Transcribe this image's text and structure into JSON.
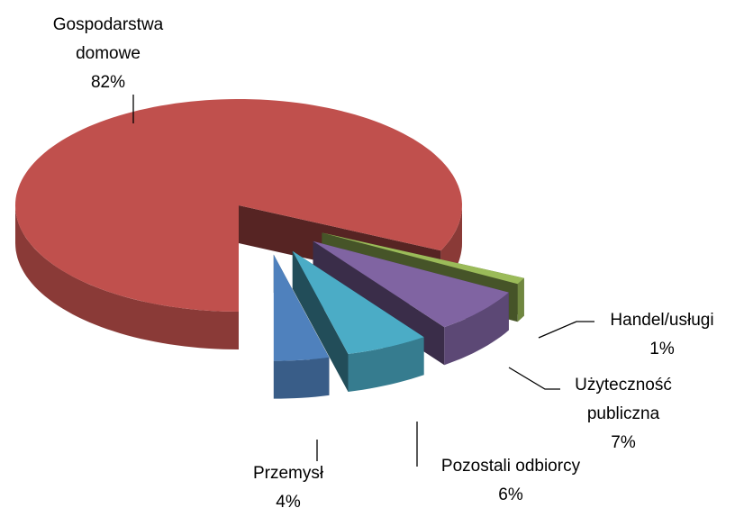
{
  "chart_data": {
    "type": "pie3d",
    "categories": [
      "Gospodarstwa domowe",
      "Handel/usługi",
      "Użyteczność publiczna",
      "Pozostali odbiorcy",
      "Przemysł"
    ],
    "values": [
      82,
      1,
      7,
      6,
      4
    ],
    "value_labels": [
      "82%",
      "1%",
      "7%",
      "6%",
      "4%"
    ],
    "colors": [
      "#c0504d",
      "#9bbb59",
      "#8064a2",
      "#4bacc6",
      "#4f81bd"
    ]
  }
}
